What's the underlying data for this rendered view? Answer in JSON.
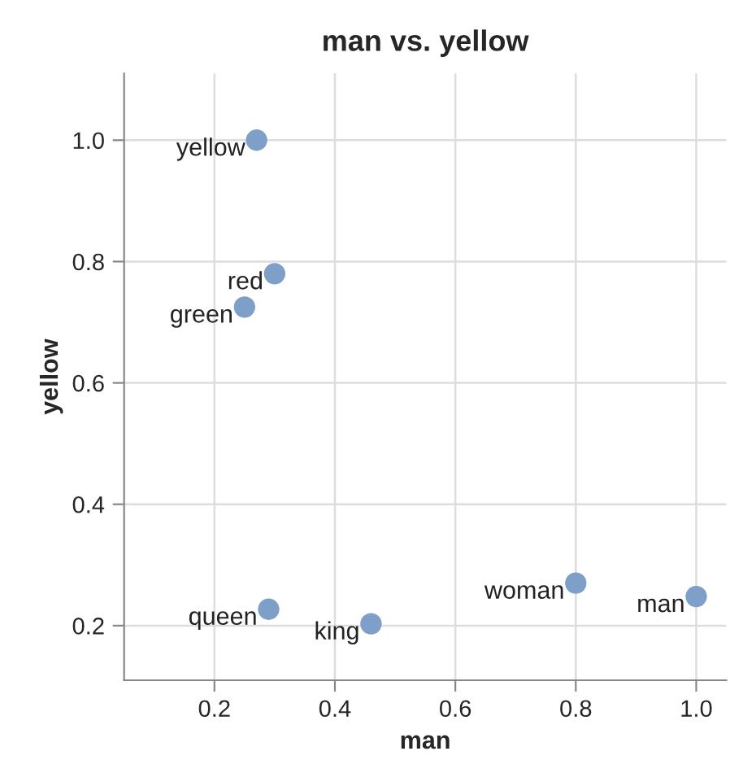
{
  "chart_data": {
    "type": "scatter",
    "title": "man vs. yellow",
    "xlabel": "man",
    "ylabel": "yellow",
    "x": [
      0.27,
      0.3,
      0.25,
      0.29,
      0.46,
      0.8,
      1.0
    ],
    "series": [
      {
        "color": "#7ea0c8",
        "values": [
          1.0,
          0.78,
          0.725,
          0.227,
          0.203,
          0.27,
          0.248
        ]
      }
    ],
    "annotations": [
      {
        "text": "yellow",
        "x": 0.27,
        "y": 1.0
      },
      {
        "text": "red",
        "x": 0.3,
        "y": 0.78
      },
      {
        "text": "green",
        "x": 0.25,
        "y": 0.725
      },
      {
        "text": "queen",
        "x": 0.29,
        "y": 0.227
      },
      {
        "text": "king",
        "x": 0.46,
        "y": 0.203
      },
      {
        "text": "woman",
        "x": 0.8,
        "y": 0.27
      },
      {
        "text": "man",
        "x": 1.0,
        "y": 0.248
      }
    ],
    "xlim": [
      0.05,
      1.05
    ],
    "ylim": [
      0.11,
      1.11
    ],
    "xticks": [
      0.2,
      0.4,
      0.6,
      0.8,
      {
        "value": 1,
        "label": "1.0"
      }
    ],
    "yticks": [
      0.2,
      0.4,
      0.6,
      0.8,
      {
        "value": 1,
        "label": "1.0"
      }
    ],
    "grid": true,
    "marker": "circle"
  }
}
